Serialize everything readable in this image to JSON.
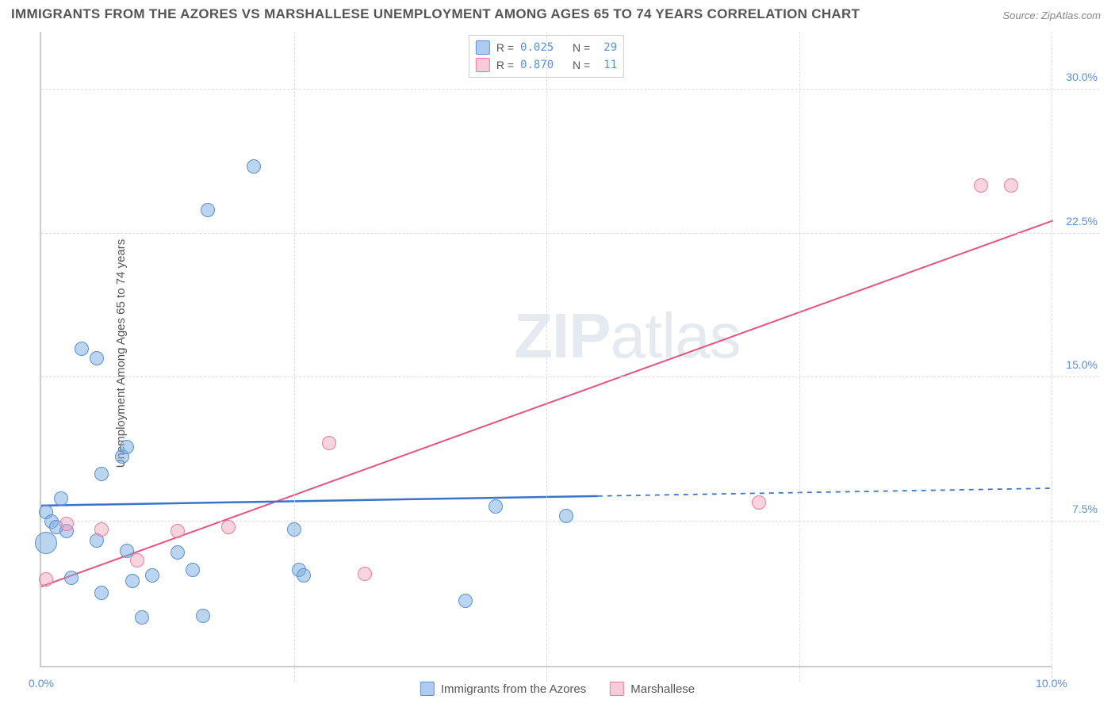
{
  "title": "IMMIGRANTS FROM THE AZORES VS MARSHALLESE UNEMPLOYMENT AMONG AGES 65 TO 74 YEARS CORRELATION CHART",
  "source": "Source: ZipAtlas.com",
  "y_axis_label": "Unemployment Among Ages 65 to 74 years",
  "watermark": {
    "bold": "ZIP",
    "light": "atlas"
  },
  "chart": {
    "type": "scatter",
    "xlim": [
      0,
      10
    ],
    "ylim": [
      0,
      33
    ],
    "x_ticks": [
      0,
      2.5,
      5,
      7.5,
      10
    ],
    "x_tick_labels": [
      "0.0%",
      "",
      "",
      "",
      "10.0%"
    ],
    "y_ticks": [
      7.5,
      15,
      22.5,
      30
    ],
    "y_tick_labels": [
      "7.5%",
      "15.0%",
      "22.5%",
      "30.0%"
    ],
    "background_color": "#ffffff",
    "grid_color": "#dddddd",
    "axis_color": "#cccccc",
    "tick_label_color": "#5b8fd6",
    "text_color": "#555555"
  },
  "series": {
    "blue": {
      "label": "Immigrants from the Azores",
      "color_fill": "rgba(120,170,225,0.5)",
      "color_stroke": "#5b8fd6",
      "marker_radius": 9,
      "R": "0.025",
      "N": "29",
      "trend": {
        "x1": 0,
        "y1": 8.4,
        "x2": 10,
        "y2": 9.3,
        "solid_until_x": 5.5,
        "stroke": "#3a73c9",
        "width": 2.5
      },
      "points": [
        {
          "x": 0.05,
          "y": 6.4,
          "r": 14
        },
        {
          "x": 0.05,
          "y": 8.0
        },
        {
          "x": 0.1,
          "y": 7.5
        },
        {
          "x": 0.15,
          "y": 7.2
        },
        {
          "x": 0.2,
          "y": 8.7
        },
        {
          "x": 0.25,
          "y": 7.0
        },
        {
          "x": 0.3,
          "y": 4.6
        },
        {
          "x": 0.4,
          "y": 16.5
        },
        {
          "x": 0.55,
          "y": 16.0
        },
        {
          "x": 0.55,
          "y": 6.5
        },
        {
          "x": 0.6,
          "y": 10.0
        },
        {
          "x": 0.6,
          "y": 3.8
        },
        {
          "x": 0.8,
          "y": 10.9
        },
        {
          "x": 0.85,
          "y": 11.4
        },
        {
          "x": 0.85,
          "y": 6.0
        },
        {
          "x": 0.9,
          "y": 4.4
        },
        {
          "x": 1.0,
          "y": 2.5
        },
        {
          "x": 1.1,
          "y": 4.7
        },
        {
          "x": 1.35,
          "y": 5.9
        },
        {
          "x": 1.5,
          "y": 5.0
        },
        {
          "x": 1.6,
          "y": 2.6
        },
        {
          "x": 1.65,
          "y": 23.7
        },
        {
          "x": 2.1,
          "y": 26.0
        },
        {
          "x": 2.5,
          "y": 7.1
        },
        {
          "x": 2.55,
          "y": 5.0
        },
        {
          "x": 2.6,
          "y": 4.7
        },
        {
          "x": 4.2,
          "y": 3.4
        },
        {
          "x": 4.5,
          "y": 8.3
        },
        {
          "x": 5.2,
          "y": 7.8
        }
      ]
    },
    "pink": {
      "label": "Marshallese",
      "color_fill": "rgba(240,160,185,0.45)",
      "color_stroke": "#e97ca0",
      "marker_radius": 9,
      "R": "0.870",
      "N": "11",
      "trend": {
        "x1": 0,
        "y1": 4.2,
        "x2": 10,
        "y2": 23.2,
        "solid_until_x": 10,
        "stroke": "#e6537f",
        "width": 2
      },
      "points": [
        {
          "x": 0.05,
          "y": 4.5
        },
        {
          "x": 0.25,
          "y": 7.4
        },
        {
          "x": 0.6,
          "y": 7.1
        },
        {
          "x": 0.95,
          "y": 5.5
        },
        {
          "x": 1.35,
          "y": 7.0
        },
        {
          "x": 1.85,
          "y": 7.2
        },
        {
          "x": 2.85,
          "y": 11.6
        },
        {
          "x": 3.2,
          "y": 4.8
        },
        {
          "x": 7.1,
          "y": 8.5
        },
        {
          "x": 9.3,
          "y": 25.0
        },
        {
          "x": 9.6,
          "y": 25.0
        }
      ]
    }
  },
  "legend_top": {
    "r_label": "R =",
    "n_label": "N ="
  },
  "legend_bottom": {
    "items": [
      "blue",
      "pink"
    ]
  }
}
